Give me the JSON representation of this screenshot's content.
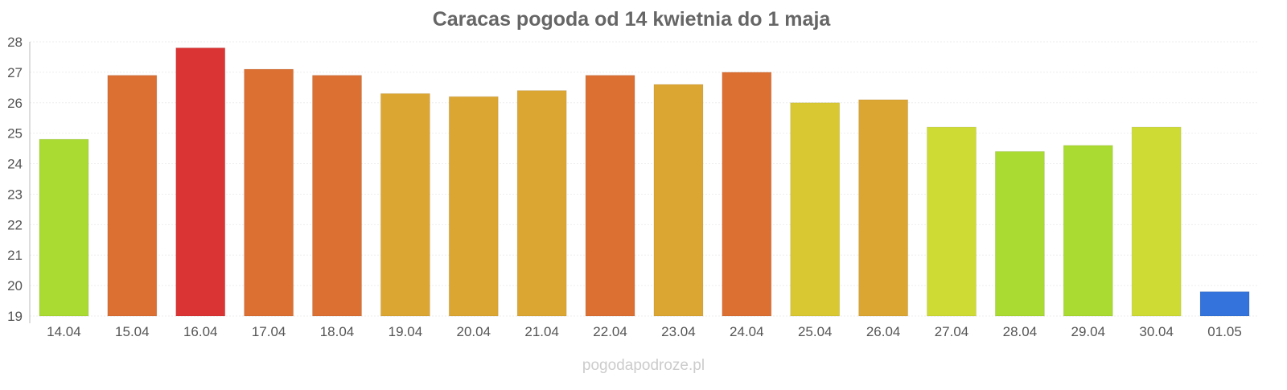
{
  "chart_data": {
    "type": "bar",
    "title": "Caracas pogoda od 14 kwietnia do 1 maja",
    "xlabel": "",
    "ylabel": "",
    "ylim": [
      19,
      28
    ],
    "yticks": [
      "19",
      "20",
      "21",
      "22",
      "23",
      "24",
      "25",
      "26",
      "27",
      "28"
    ],
    "grid": true,
    "categories": [
      "14.04",
      "15.04",
      "16.04",
      "17.04",
      "18.04",
      "19.04",
      "20.04",
      "21.04",
      "22.04",
      "23.04",
      "24.04",
      "25.04",
      "26.04",
      "27.04",
      "28.04",
      "29.04",
      "30.04",
      "01.05"
    ],
    "values": [
      24.8,
      26.9,
      27.8,
      27.1,
      26.9,
      26.3,
      26.2,
      26.4,
      26.9,
      26.6,
      27.0,
      26.0,
      26.1,
      25.2,
      24.4,
      24.6,
      25.2,
      19.8
    ],
    "colors": [
      "#aadb32",
      "#dc6f32",
      "#db3434",
      "#dc6f32",
      "#dc6f32",
      "#dca632",
      "#dca632",
      "#dca632",
      "#dc6f32",
      "#dca632",
      "#dc6f32",
      "#d9c832",
      "#dca632",
      "#cedb34",
      "#aadb32",
      "#aadb32",
      "#cedb34",
      "#3373db"
    ]
  },
  "watermark": "pogodapodroze.pl"
}
